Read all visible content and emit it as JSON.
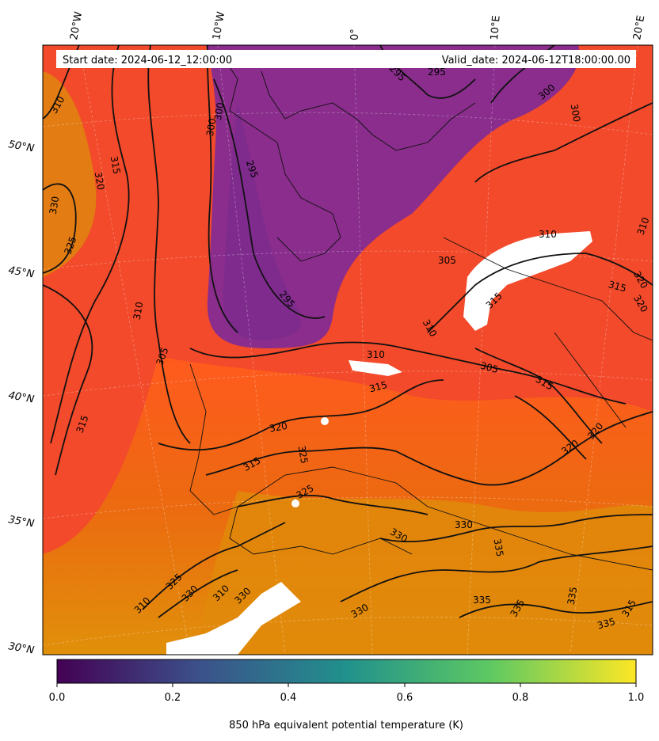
{
  "header": {
    "start_date": "Start date: 2024-06-12_12:00:00",
    "valid_date": "Valid_date: 2024-06-12T18:00:00.00"
  },
  "longitude_labels": [
    "20°W",
    "10°W",
    "0°",
    "10°E",
    "20°E"
  ],
  "latitude_labels": [
    "50°N",
    "45°N",
    "40°N",
    "35°N",
    "30°N"
  ],
  "contour_labels": [
    "310",
    "300",
    "300",
    "295",
    "295",
    "295",
    "300",
    "300",
    "310",
    "315",
    "320",
    "330",
    "325",
    "305",
    "310",
    "295",
    "310",
    "305",
    "315",
    "310",
    "315",
    "310",
    "305",
    "315",
    "320",
    "320",
    "315",
    "320",
    "320",
    "325",
    "325",
    "330",
    "330",
    "335",
    "330",
    "335",
    "335",
    "335",
    "335",
    "315",
    "315",
    "325",
    "330",
    "310",
    "330",
    "310",
    "315",
    "320"
  ],
  "colorbar": {
    "ticks": [
      "0.0",
      "0.2",
      "0.4",
      "0.6",
      "0.8",
      "1.0"
    ],
    "label": "850 hPa equivalent potential temperature (K)",
    "colors": [
      "#440154",
      "#3b528b",
      "#21918c",
      "#5ec962",
      "#fde725"
    ]
  },
  "map_colors": {
    "cold_purple": "#7b2a8a",
    "mid_red": "#ff4a24",
    "warm_orange": "#e0840c",
    "hot_yellow": "#f0a400"
  }
}
